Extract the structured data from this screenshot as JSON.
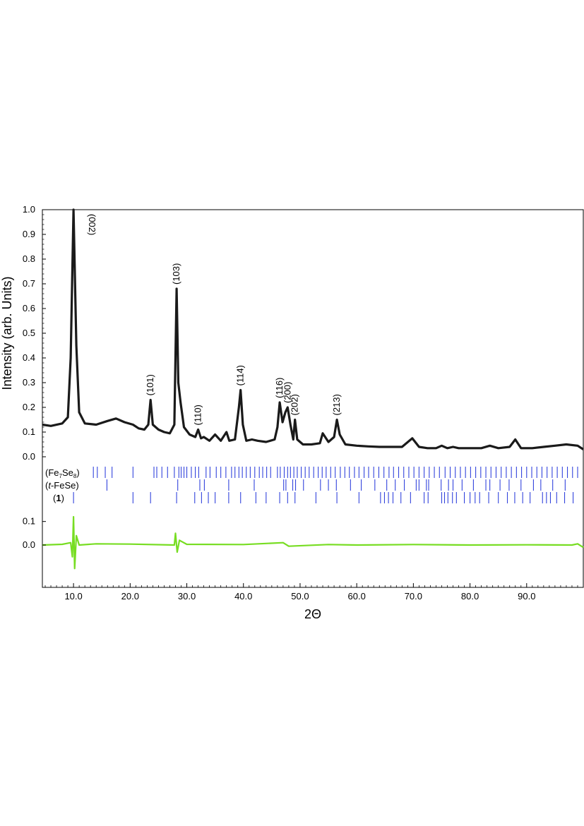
{
  "chart_data": {
    "type": "line",
    "xlabel": "2Θ",
    "ylabel": "Intensity (arb. Units)",
    "xlim": [
      4.5,
      100
    ],
    "xticks": [
      "10.0",
      "20.0",
      "30.0",
      "40.0",
      "50.0",
      "60.0",
      "70.0",
      "80.0",
      "90.0"
    ],
    "xtick_values": [
      10,
      20,
      30,
      40,
      50,
      60,
      70,
      80,
      90
    ],
    "main_panel": {
      "ylim": [
        0,
        1.0
      ],
      "yticks": [
        "0.0",
        "0.1",
        "0.2",
        "0.3",
        "0.4",
        "0.5",
        "0.6",
        "0.7",
        "0.8",
        "0.9",
        "1.0"
      ],
      "ytick_values": [
        0,
        0.1,
        0.2,
        0.3,
        0.4,
        0.5,
        0.6,
        0.7,
        0.8,
        0.9,
        1.0
      ],
      "series": [
        {
          "color": "#1a1a1a",
          "x": [
            4.5,
            6,
            8,
            9,
            9.5,
            10,
            10.5,
            11,
            12,
            14,
            16,
            17.5,
            19,
            20.5,
            21.5,
            22.5,
            23.2,
            23.6,
            24,
            25,
            26,
            27,
            27.8,
            28.2,
            28.5,
            28.9,
            29.5,
            30.5,
            31.5,
            32,
            32.5,
            33,
            34,
            35,
            36,
            37,
            37.5,
            38.5,
            39.2,
            39.5,
            39.9,
            40.5,
            41.5,
            42.5,
            44,
            45.5,
            46,
            46.4,
            46.9,
            47.4,
            47.8,
            48.3,
            48.8,
            49.1,
            49.5,
            50.5,
            52,
            53.5,
            54,
            55,
            56,
            56.5,
            57,
            58,
            60,
            62,
            64,
            66,
            68,
            69.8,
            71,
            72.5,
            74,
            75,
            76,
            77,
            78,
            80,
            82,
            83.5,
            85,
            87,
            88,
            89,
            91,
            93,
            95,
            97,
            99,
            100
          ],
          "y": [
            0.13,
            0.125,
            0.135,
            0.16,
            0.4,
            1.0,
            0.45,
            0.18,
            0.135,
            0.13,
            0.145,
            0.155,
            0.14,
            0.13,
            0.115,
            0.11,
            0.13,
            0.23,
            0.13,
            0.11,
            0.1,
            0.095,
            0.13,
            0.68,
            0.3,
            0.22,
            0.12,
            0.09,
            0.08,
            0.11,
            0.075,
            0.08,
            0.065,
            0.09,
            0.065,
            0.1,
            0.065,
            0.07,
            0.2,
            0.27,
            0.13,
            0.065,
            0.07,
            0.065,
            0.06,
            0.07,
            0.12,
            0.22,
            0.14,
            0.18,
            0.2,
            0.13,
            0.07,
            0.15,
            0.07,
            0.05,
            0.05,
            0.055,
            0.095,
            0.06,
            0.08,
            0.15,
            0.09,
            0.05,
            0.045,
            0.042,
            0.04,
            0.04,
            0.04,
            0.075,
            0.04,
            0.035,
            0.035,
            0.045,
            0.035,
            0.04,
            0.035,
            0.035,
            0.035,
            0.045,
            0.035,
            0.04,
            0.07,
            0.035,
            0.035,
            0.04,
            0.045,
            0.05,
            0.045,
            0.03
          ]
        }
      ],
      "peaks": [
        {
          "label": "(002)",
          "x": 10.0,
          "y": 1.0
        },
        {
          "label": "(103)",
          "x": 28.2,
          "y": 0.68
        },
        {
          "label": "(101)",
          "x": 23.6,
          "y": 0.23
        },
        {
          "label": "(110)",
          "x": 32.0,
          "y": 0.11
        },
        {
          "label": "(114)",
          "x": 39.5,
          "y": 0.27
        },
        {
          "label": "(116)",
          "x": 46.4,
          "y": 0.22
        },
        {
          "label": "(200)",
          "x": 47.8,
          "y": 0.2
        },
        {
          "label": "(202)",
          "x": 49.1,
          "y": 0.15
        },
        {
          "label": "(213)",
          "x": 56.5,
          "y": 0.15
        }
      ]
    },
    "phase_markers": {
      "color": "#3344dd",
      "phases": [
        {
          "label": "(Fe7Se8)",
          "label_main": "Fe",
          "sub1": "7",
          "mid": "Se",
          "sub2": "8",
          "positions": [
            13.5,
            14.2,
            15.6,
            16.8,
            20.5,
            24.2,
            24.7,
            25.6,
            26.6,
            27.8,
            28.6,
            29.0,
            29.5,
            30.0,
            30.8,
            31.5,
            32.1,
            33.4,
            34.1,
            35.2,
            36.0,
            36.9,
            37.9,
            38.5,
            39.2,
            39.8,
            40.5,
            41.2,
            42.0,
            42.8,
            43.4,
            44.1,
            44.8,
            46.0,
            46.5,
            47.2,
            47.8,
            48.3,
            48.9,
            49.5,
            50.2,
            50.9,
            51.6,
            52.4,
            53.2,
            53.9,
            54.6,
            55.4,
            56.2,
            57.1,
            57.9,
            58.7,
            59.6,
            60.4,
            61.3,
            62.1,
            63.0,
            63.9,
            64.8,
            65.7,
            66.5,
            67.4,
            68.3,
            69.2,
            70.1,
            71.0,
            71.9,
            72.8,
            73.7,
            74.6,
            75.6,
            76.5,
            77.4,
            78.3,
            79.2,
            80.1,
            81.0,
            81.9,
            82.8,
            83.7,
            84.6,
            85.5,
            86.4,
            87.3,
            88.2,
            89.1,
            90.0,
            90.9,
            91.8,
            92.7,
            93.6,
            94.5,
            95.4,
            96.3,
            97.2,
            98.1,
            99.0
          ]
        },
        {
          "label": "(t-FeSe)",
          "label_main": "t",
          "rest": "-FeSe",
          "positions": [
            15.9,
            28.4,
            32.3,
            33.1,
            37.4,
            41.9,
            47.1,
            47.5,
            48.7,
            49.2,
            50.6,
            53.6,
            55.0,
            56.4,
            58.9,
            60.8,
            63.2,
            65.3,
            66.8,
            68.4,
            70.5,
            71.0,
            72.3,
            72.7,
            74.9,
            76.2,
            77.0,
            78.6,
            80.6,
            82.8,
            83.5,
            85.3,
            86.9,
            89.0,
            91.2,
            92.5,
            94.6,
            96.8
          ]
        },
        {
          "label": "(1)",
          "label_bold": "1",
          "positions": [
            10.0,
            20.5,
            23.6,
            28.2,
            31.4,
            32.6,
            33.8,
            35.0,
            37.4,
            39.5,
            42.2,
            44.0,
            46.4,
            47.8,
            49.1,
            52.8,
            56.5,
            60.4,
            64.2,
            64.9,
            65.6,
            66.4,
            67.8,
            69.5,
            71.9,
            72.6,
            75.0,
            75.5,
            76.1,
            76.9,
            77.6,
            79.0,
            80.0,
            80.9,
            81.7,
            83.3,
            85.0,
            86.6,
            87.9,
            89.3,
            90.6,
            92.8,
            93.5,
            94.2,
            95.3,
            96.7,
            98.2
          ]
        }
      ]
    },
    "difference_panel": {
      "ylim": [
        -0.15,
        0.15
      ],
      "yticks": [
        "0.1",
        "0.0"
      ],
      "ytick_values": [
        0.1,
        0.0
      ],
      "series": [
        {
          "color": "#77dd22",
          "x": [
            4.5,
            8,
            9.5,
            9.8,
            10.0,
            10.2,
            10.5,
            11,
            14,
            20,
            27.8,
            28.0,
            28.3,
            28.7,
            30,
            40,
            47,
            48,
            55,
            60,
            70,
            80,
            90,
            98,
            99,
            100
          ],
          "y": [
            0.0,
            0.003,
            0.01,
            -0.05,
            0.12,
            -0.1,
            0.04,
            0.0,
            0.005,
            0.004,
            0.0,
            0.05,
            -0.03,
            0.02,
            0.003,
            0.002,
            0.01,
            -0.005,
            0.002,
            0.0,
            0.002,
            0.0,
            0.001,
            0.0,
            0.005,
            -0.01
          ]
        }
      ]
    }
  }
}
